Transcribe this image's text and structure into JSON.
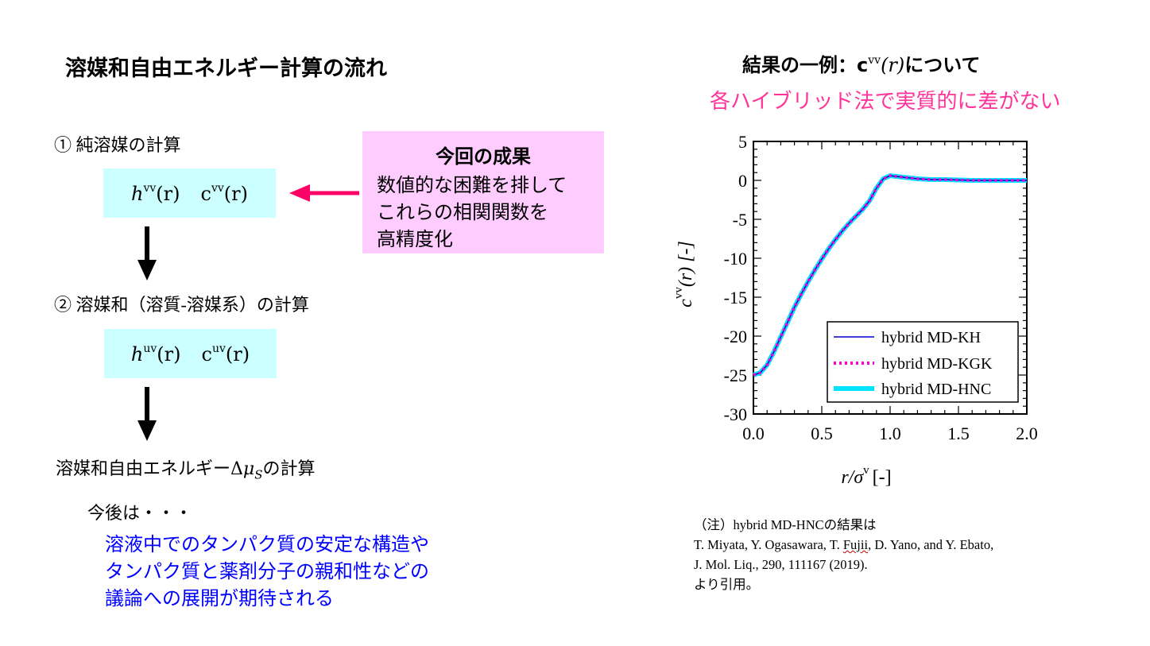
{
  "left": {
    "title": "溶媒和自由エネルギー計算の流れ",
    "step1": "①  純溶媒の計算",
    "eq1_h": "h",
    "eq1_h_sup": "vv",
    "eq1_h_arg": "(r)",
    "eq1_c": "c",
    "eq1_c_sup": "vv",
    "eq1_c_arg": "(r)",
    "step2": "②  溶媒和（溶質-溶媒系）の計算",
    "eq2_h": "h",
    "eq2_h_sup": "uv",
    "eq2_h_arg": "(r)",
    "eq2_c": "c",
    "eq2_c_sup": "uv",
    "eq2_c_arg": "(r)",
    "step3_pre": "溶媒和自由エネルギー",
    "step3_delta": "Δ",
    "step3_mu": "μ",
    "step3_sub": "S",
    "step3_post": "の計算",
    "future_lead": "今後は・・・",
    "future_lines": [
      "溶液中でのタンパク質の安定な構造や",
      "タンパク質と薬剤分子の親和性などの",
      "議論への展開が期待される"
    ],
    "highlight": {
      "title": "今回の成果",
      "lines": [
        "数値的な困難を排して",
        "これらの相関関数を",
        "高精度化"
      ]
    }
  },
  "right": {
    "title_pre": "結果の一例：c",
    "title_sup": "vv",
    "title_arg": "(r)",
    "title_post": "について",
    "subtitle": "各ハイブリッド法で実質的に差がない",
    "note_lines": [
      "（注）hybrid MD-HNCの結果は",
      "T. Miyata, Y. Ogasawara, T. ",
      "Fujii",
      ", D. Yano, and Y. Ebato,",
      "J. Mol. Liq., 290, 111167 (2019).",
      "より引用。"
    ]
  },
  "colors": {
    "eq_box": "#ccffff",
    "highlight_box": "#ffccff",
    "arrow_pink": "#ff0066",
    "future_text": "#0000ff",
    "subtitle": "#ff3399",
    "kh": "#0000cc",
    "kgk": "#ff00cc",
    "hnc": "#00e5ff"
  },
  "chart_data": {
    "type": "line",
    "xlabel_var": "r/σ",
    "xlabel_sup": "v",
    "xlabel_unit": "[-]",
    "ylabel_var": "c",
    "ylabel_sup": "vv",
    "ylabel_arg": "(r) [-]",
    "xlim": [
      0.0,
      2.0
    ],
    "ylim": [
      -30,
      5
    ],
    "xticks": [
      "0.0",
      "0.5",
      "1.0",
      "1.5",
      "2.0"
    ],
    "yticks": [
      "5",
      "0",
      "-5",
      "-10",
      "-15",
      "-20",
      "-25",
      "-30"
    ],
    "legend_position": "lower-right",
    "x": [
      0.0,
      0.05,
      0.1,
      0.15,
      0.2,
      0.25,
      0.3,
      0.35,
      0.4,
      0.45,
      0.5,
      0.55,
      0.6,
      0.65,
      0.7,
      0.75,
      0.8,
      0.85,
      0.9,
      0.95,
      1.0,
      1.05,
      1.1,
      1.2,
      1.3,
      1.4,
      1.5,
      1.6,
      1.7,
      1.8,
      1.9,
      2.0
    ],
    "series": [
      {
        "name": "hybrid MD-KH",
        "values": [
          -25.0,
          -24.7,
          -23.7,
          -22.0,
          -20.1,
          -18.2,
          -16.3,
          -14.6,
          -13.0,
          -11.5,
          -10.1,
          -8.8,
          -7.6,
          -6.5,
          -5.5,
          -4.6,
          -3.7,
          -2.6,
          -1.0,
          0.2,
          0.6,
          0.5,
          0.4,
          0.2,
          0.1,
          0.1,
          0.05,
          0.0,
          0.0,
          0.0,
          0.0,
          0.0
        ]
      },
      {
        "name": "hybrid MD-KGK",
        "values": [
          -25.0,
          -24.7,
          -23.7,
          -22.0,
          -20.1,
          -18.2,
          -16.3,
          -14.6,
          -13.0,
          -11.5,
          -10.1,
          -8.8,
          -7.6,
          -6.5,
          -5.5,
          -4.6,
          -3.7,
          -2.6,
          -1.0,
          0.2,
          0.6,
          0.5,
          0.4,
          0.2,
          0.1,
          0.1,
          0.05,
          0.0,
          0.0,
          0.0,
          0.0,
          0.0
        ]
      },
      {
        "name": "hybrid MD-HNC",
        "values": [
          -25.0,
          -24.7,
          -23.7,
          -22.0,
          -20.1,
          -18.2,
          -16.3,
          -14.6,
          -13.0,
          -11.5,
          -10.1,
          -8.8,
          -7.6,
          -6.5,
          -5.5,
          -4.6,
          -3.7,
          -2.6,
          -1.0,
          0.2,
          0.6,
          0.5,
          0.4,
          0.2,
          0.1,
          0.1,
          0.05,
          0.0,
          0.0,
          0.0,
          0.0,
          0.0
        ]
      }
    ]
  }
}
